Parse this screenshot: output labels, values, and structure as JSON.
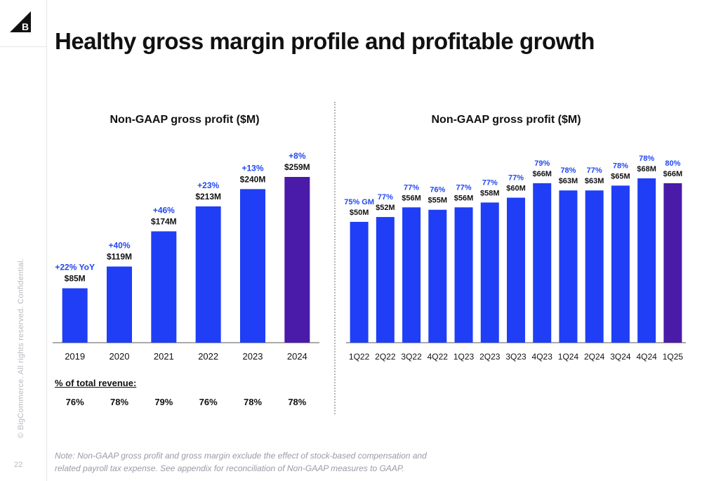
{
  "title": "Healthy gross margin profile and profitable growth",
  "sidebar": {
    "confidential": "© BigCommerce. All rights reserved. Confidential.",
    "page_number": "22",
    "logo_label": "B"
  },
  "colors": {
    "bar": "#1f3ef5",
    "bar_highlight": "#4a1aa8",
    "pct": "#2148f0",
    "axis": "#555555"
  },
  "chart_data": [
    {
      "type": "bar",
      "title": "Non-GAAP gross profit ($M)",
      "categories": [
        "2019",
        "2020",
        "2021",
        "2022",
        "2023",
        "2024"
      ],
      "values": [
        85,
        119,
        174,
        213,
        240,
        259
      ],
      "value_labels": [
        "$85M",
        "$119M",
        "$174M",
        "$213M",
        "$240M",
        "$259M"
      ],
      "growth_labels": [
        "+22% YoY",
        "+40%",
        "+46%",
        "+23%",
        "+13%",
        "+8%"
      ],
      "highlight_index": 5,
      "ylim": [
        0,
        275
      ]
    },
    {
      "type": "bar",
      "title": "Non-GAAP gross profit ($M)",
      "categories": [
        "1Q22",
        "2Q22",
        "3Q22",
        "4Q22",
        "1Q23",
        "2Q23",
        "3Q23",
        "4Q23",
        "1Q24",
        "2Q24",
        "3Q24",
        "4Q24",
        "1Q25"
      ],
      "values": [
        50,
        52,
        56,
        55,
        56,
        58,
        60,
        66,
        63,
        63,
        65,
        68,
        66
      ],
      "value_labels": [
        "$50M",
        "$52M",
        "$56M",
        "$55M",
        "$56M",
        "$58M",
        "$60M",
        "$66M",
        "$63M",
        "$63M",
        "$65M",
        "$68M",
        "$66M"
      ],
      "margin_labels": [
        "75% GM",
        "77%",
        "77%",
        "76%",
        "77%",
        "77%",
        "77%",
        "79%",
        "78%",
        "77%",
        "78%",
        "78%",
        "80%"
      ],
      "highlight_index": 12,
      "ylim": [
        0,
        100
      ]
    }
  ],
  "revenue": {
    "title": "% of total revenue:",
    "values": [
      "76%",
      "78%",
      "79%",
      "76%",
      "78%",
      "78%"
    ]
  },
  "note": "Note: Non-GAAP gross profit and gross margin exclude the effect of stock-based compensation and related payroll tax expense. See appendix for reconciliation of Non-GAAP measures to GAAP."
}
